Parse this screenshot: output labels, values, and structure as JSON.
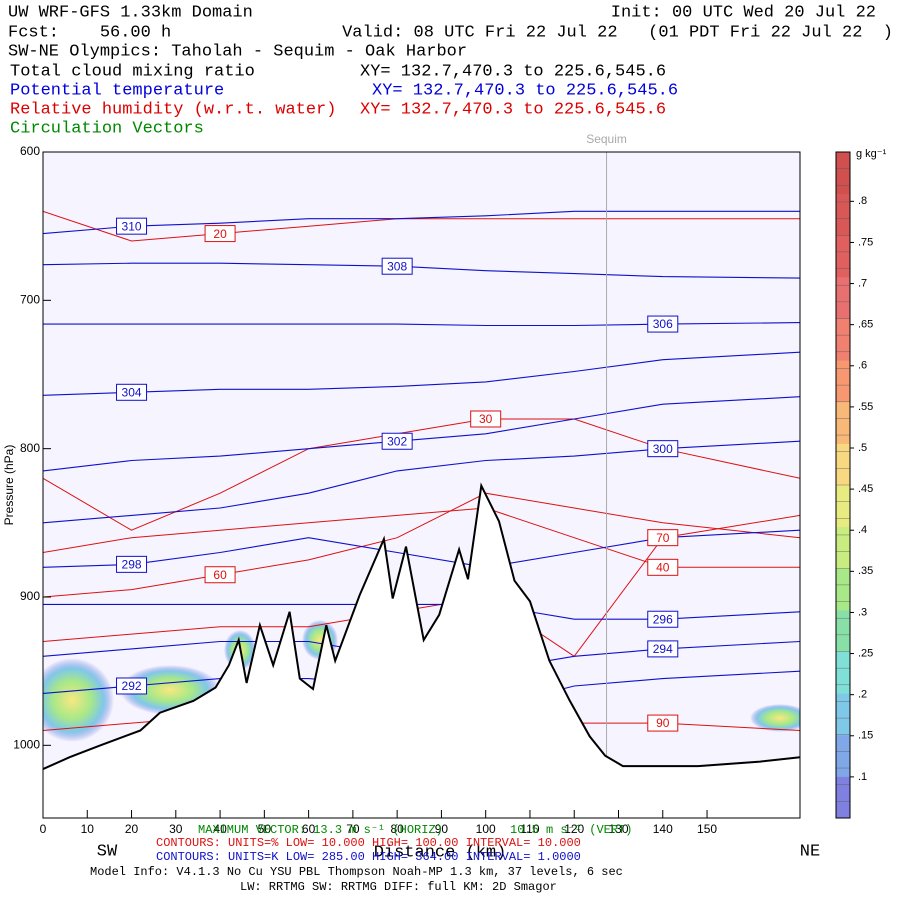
{
  "chart_data": {
    "type": "cross-section",
    "header": {
      "model": "UW WRF-GFS 1.33km Domain",
      "init": "Init: 00 UTC Wed 20 Jul 22",
      "fcst": "Fcst:    56.00 h",
      "valid": "Valid: 08 UTC Fri 22 Jul 22   (01 PDT Fri 22 Jul 22  )",
      "section": "SW-NE Olympics: Taholah - Sequim - Oak Harbor",
      "fields": [
        {
          "name": "Total cloud mixing ratio",
          "xy": "XY= 132.7,470.3 to 225.6,545.6",
          "color": "#000000"
        },
        {
          "name": "Potential temperature",
          "xy": "XY= 132.7,470.3 to 225.6,545.6",
          "color": "#0000dd"
        },
        {
          "name": "Relative humidity (w.r.t. water)",
          "xy": "XY= 132.7,470.3 to 225.6,545.6",
          "color": "#dd0000"
        },
        {
          "name": "Circulation Vectors",
          "color": "#008800"
        }
      ]
    },
    "y_label": "Pressure (hPa)",
    "x_label": "Distance (km)",
    "left_end": "SW",
    "right_end": "NE",
    "xlim": [
      0,
      171
    ],
    "xticks": [
      0,
      10,
      20,
      30,
      40,
      50,
      60,
      70,
      80,
      90,
      100,
      110,
      120,
      130,
      140,
      150
    ],
    "ylim": [
      1049,
      600
    ],
    "yticks": [
      600,
      700,
      800,
      900,
      1000
    ],
    "background": "#f5f4ff",
    "marker": {
      "name": "Sequim",
      "x": 127.3,
      "color": "#aaaaaa"
    },
    "terrain": {
      "x": [
        0,
        6,
        13,
        22,
        26.4,
        34,
        39,
        42,
        44.2,
        46,
        49,
        52,
        55.7,
        58,
        61,
        64,
        66,
        71.5,
        77,
        79,
        82,
        86,
        89.5,
        94,
        96,
        99,
        103,
        106.5,
        110,
        114.4,
        119,
        123.5,
        127,
        131,
        148,
        162,
        171
      ],
      "values": [
        1016,
        1008,
        1000,
        990,
        978,
        970,
        961,
        946,
        929,
        958,
        919,
        946,
        910,
        955,
        962,
        919,
        943,
        899,
        861,
        901,
        866,
        929,
        912,
        868,
        888,
        825,
        849,
        889,
        903,
        943,
        970,
        994,
        1007,
        1014,
        1014,
        1011,
        1008
      ]
    },
    "contour_x": [
      0,
      20,
      40,
      60,
      80,
      100,
      120,
      140,
      171
    ],
    "theta_color": "#1010cc",
    "rh_color": "#dd1111",
    "theta": [
      {
        "value": 310,
        "values": [
          655,
          650,
          648,
          645,
          645,
          643,
          640,
          640,
          640
        ]
      },
      {
        "value": 308,
        "values": [
          676,
          675,
          675,
          676,
          677,
          680,
          682,
          684,
          685
        ]
      },
      {
        "value": 306,
        "values": [
          716,
          716,
          716,
          716,
          716,
          717,
          717,
          716,
          715
        ]
      },
      {
        "value": 304,
        "values": [
          764,
          762,
          760,
          760,
          758,
          755,
          748,
          740,
          735
        ]
      },
      {
        "value": 302,
        "values": [
          815,
          808,
          805,
          800,
          795,
          790,
          780,
          770,
          765
        ]
      },
      {
        "value": 300,
        "values": [
          850,
          845,
          840,
          830,
          815,
          808,
          805,
          800,
          795
        ]
      },
      {
        "value": 298,
        "values": [
          880,
          878,
          870,
          860,
          870,
          880,
          870,
          860,
          855
        ]
      },
      {
        "value": 296,
        "values": [
          905,
          905,
          905,
          905,
          905,
          905,
          915,
          915,
          910
        ]
      },
      {
        "value": 294,
        "values": [
          940,
          935,
          930,
          930,
          940,
          950,
          940,
          935,
          930
        ]
      },
      {
        "value": 292,
        "values": [
          965,
          960,
          955,
          955,
          960,
          975,
          960,
          955,
          950
        ]
      }
    ],
    "rh": [
      {
        "value": 20,
        "values": [
          640,
          660,
          655,
          650,
          645,
          645,
          645,
          645,
          645
        ]
      },
      {
        "value": 30,
        "values": [
          820,
          855,
          830,
          800,
          790,
          780,
          780,
          800,
          820
        ]
      },
      {
        "value": 40,
        "values": [
          870,
          860,
          855,
          850,
          845,
          840,
          860,
          880,
          880
        ]
      },
      {
        "value": 60,
        "values": [
          900,
          895,
          885,
          875,
          860,
          830,
          840,
          850,
          860
        ]
      },
      {
        "value": 70,
        "values": [
          930,
          925,
          920,
          920,
          910,
          900,
          940,
          860,
          845
        ]
      },
      {
        "value": 90,
        "values": [
          990,
          985,
          980,
          975,
          975,
          975,
          985,
          985,
          990
        ]
      }
    ],
    "colorbar": {
      "label": "g kg⁻¹",
      "lim": [
        0.05,
        0.86
      ],
      "ticks": [
        {
          "value": 0.1,
          "label": ".1"
        },
        {
          "value": 0.15,
          "label": ".15"
        },
        {
          "value": 0.2,
          "label": ".2"
        },
        {
          "value": 0.25,
          "label": ".25"
        },
        {
          "value": 0.3,
          "label": ".3"
        },
        {
          "value": 0.35,
          "label": ".35"
        },
        {
          "value": 0.4,
          "label": ".4"
        },
        {
          "value": 0.45,
          "label": ".45"
        },
        {
          "value": 0.5,
          "label": ".5"
        },
        {
          "value": 0.55,
          "label": ".55"
        },
        {
          "value": 0.6,
          "label": ".6"
        },
        {
          "value": 0.65,
          "label": ".65"
        },
        {
          "value": 0.7,
          "label": ".7"
        },
        {
          "value": 0.75,
          "label": ".75"
        },
        {
          "value": 0.8,
          "label": ".8"
        }
      ],
      "colors": [
        "#8080e0",
        "#80a8e8",
        "#80c8e8",
        "#80e0d8",
        "#88e0a8",
        "#a8e888",
        "#c8ec80",
        "#e8ec80",
        "#f8d880",
        "#f8b878",
        "#f89870",
        "#f08070",
        "#e87070",
        "#e06060",
        "#d85858",
        "#d05050"
      ]
    },
    "footer": {
      "vector_h": "MAXIMUM VECTOR: 13.3 m s⁻¹ (HORIZ)",
      "vector_v": "10.5 m s⁻¹ (VERT)",
      "rh_contours": "CONTOURS:  UNITS=%  LOW=  10.000     HIGH=  100.00      INTERVAL=   10.000",
      "theta_contours": "CONTOURS:  UNITS=K  LOW=  285.00     HIGH=  364.00      INTERVAL=   1.0000",
      "model_info": "Model Info: V4.1.3    No Cu    YSU PBL   Thompson     Noah-MP    1.3 km,   37 levels,    6 sec",
      "physics": "LW: RRTMG  SW: RRTMG    DIFF: full    KM: 2D Smagor"
    }
  }
}
